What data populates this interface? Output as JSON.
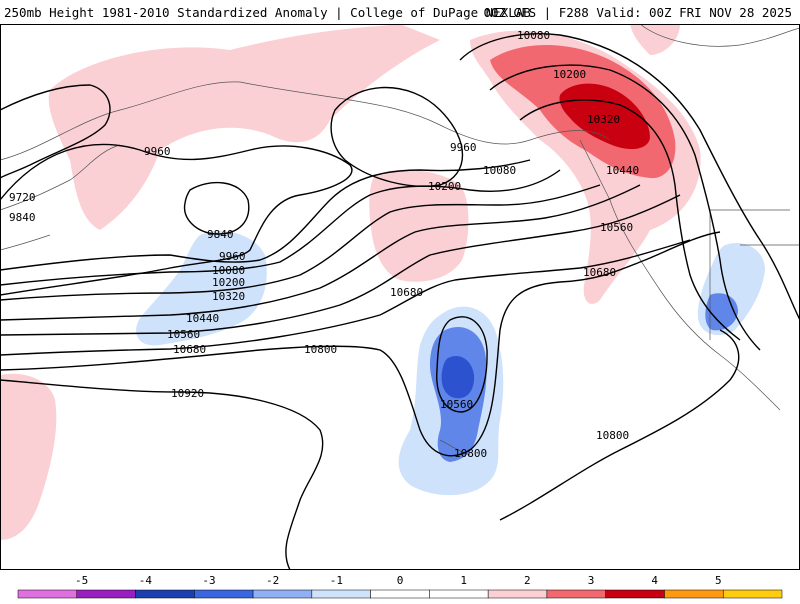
{
  "header": {
    "title_left": "250mb Height 1981-2010 Standardized Anomaly | College of DuPage NEXLAB",
    "title_right": "00Z GFS | F288 Valid: 00Z FRI NOV 28 2025"
  },
  "contour_labels": [
    {
      "id": "c10080-ne",
      "text": "10080"
    },
    {
      "id": "c10200-ne",
      "text": "10200"
    },
    {
      "id": "c10320-ne",
      "text": "10320"
    },
    {
      "id": "c10440-ne",
      "text": "10440"
    },
    {
      "id": "c9960-w",
      "text": "9960"
    },
    {
      "id": "c9960-c",
      "text": "9960"
    },
    {
      "id": "c10080-c",
      "text": "10080"
    },
    {
      "id": "c10200-c",
      "text": "10200"
    },
    {
      "id": "c9720",
      "text": "9720"
    },
    {
      "id": "c9840-w",
      "text": "9840"
    },
    {
      "id": "c9840-low",
      "text": "9840"
    },
    {
      "id": "c9960-low",
      "text": "9960"
    },
    {
      "id": "c10080-low",
      "text": "10080"
    },
    {
      "id": "c10200-low",
      "text": "10200"
    },
    {
      "id": "c10320-low",
      "text": "10320"
    },
    {
      "id": "c10440-low",
      "text": "10440"
    },
    {
      "id": "c10560-low",
      "text": "10560"
    },
    {
      "id": "c10680-low",
      "text": "10680"
    },
    {
      "id": "c10560-e",
      "text": "10560"
    },
    {
      "id": "c10680-e",
      "text": "10680"
    },
    {
      "id": "c10680-c",
      "text": "10680"
    },
    {
      "id": "c10800-c",
      "text": "10800"
    },
    {
      "id": "c10560-trough",
      "text": "10560"
    },
    {
      "id": "c10800-trough",
      "text": "10800"
    },
    {
      "id": "c10920",
      "text": "10920"
    },
    {
      "id": "c10800-se",
      "text": "10800"
    }
  ],
  "colorbar": {
    "labels": [
      "-5",
      "-4",
      "-3",
      "-2",
      "-1",
      "0",
      "1",
      "2",
      "3",
      "4",
      "5"
    ],
    "colors": [
      "#e070e0",
      "#9a1fc0",
      "#1c3fb0",
      "#3a66e0",
      "#8fb0f4",
      "#cfe2fb",
      "#ffffff",
      "#ffffff",
      "#fbd0d4",
      "#f26870",
      "#c80010",
      "#ff9a10",
      "#ffcc10"
    ],
    "min": -6,
    "max": 6
  },
  "anomaly_colors": {
    "pos1": "#fbd0d4",
    "pos2": "#f26870",
    "pos3": "#c80010",
    "neg1": "#cfe2fb",
    "neg2": "#5f86e8",
    "neg3": "#2c52d0"
  }
}
